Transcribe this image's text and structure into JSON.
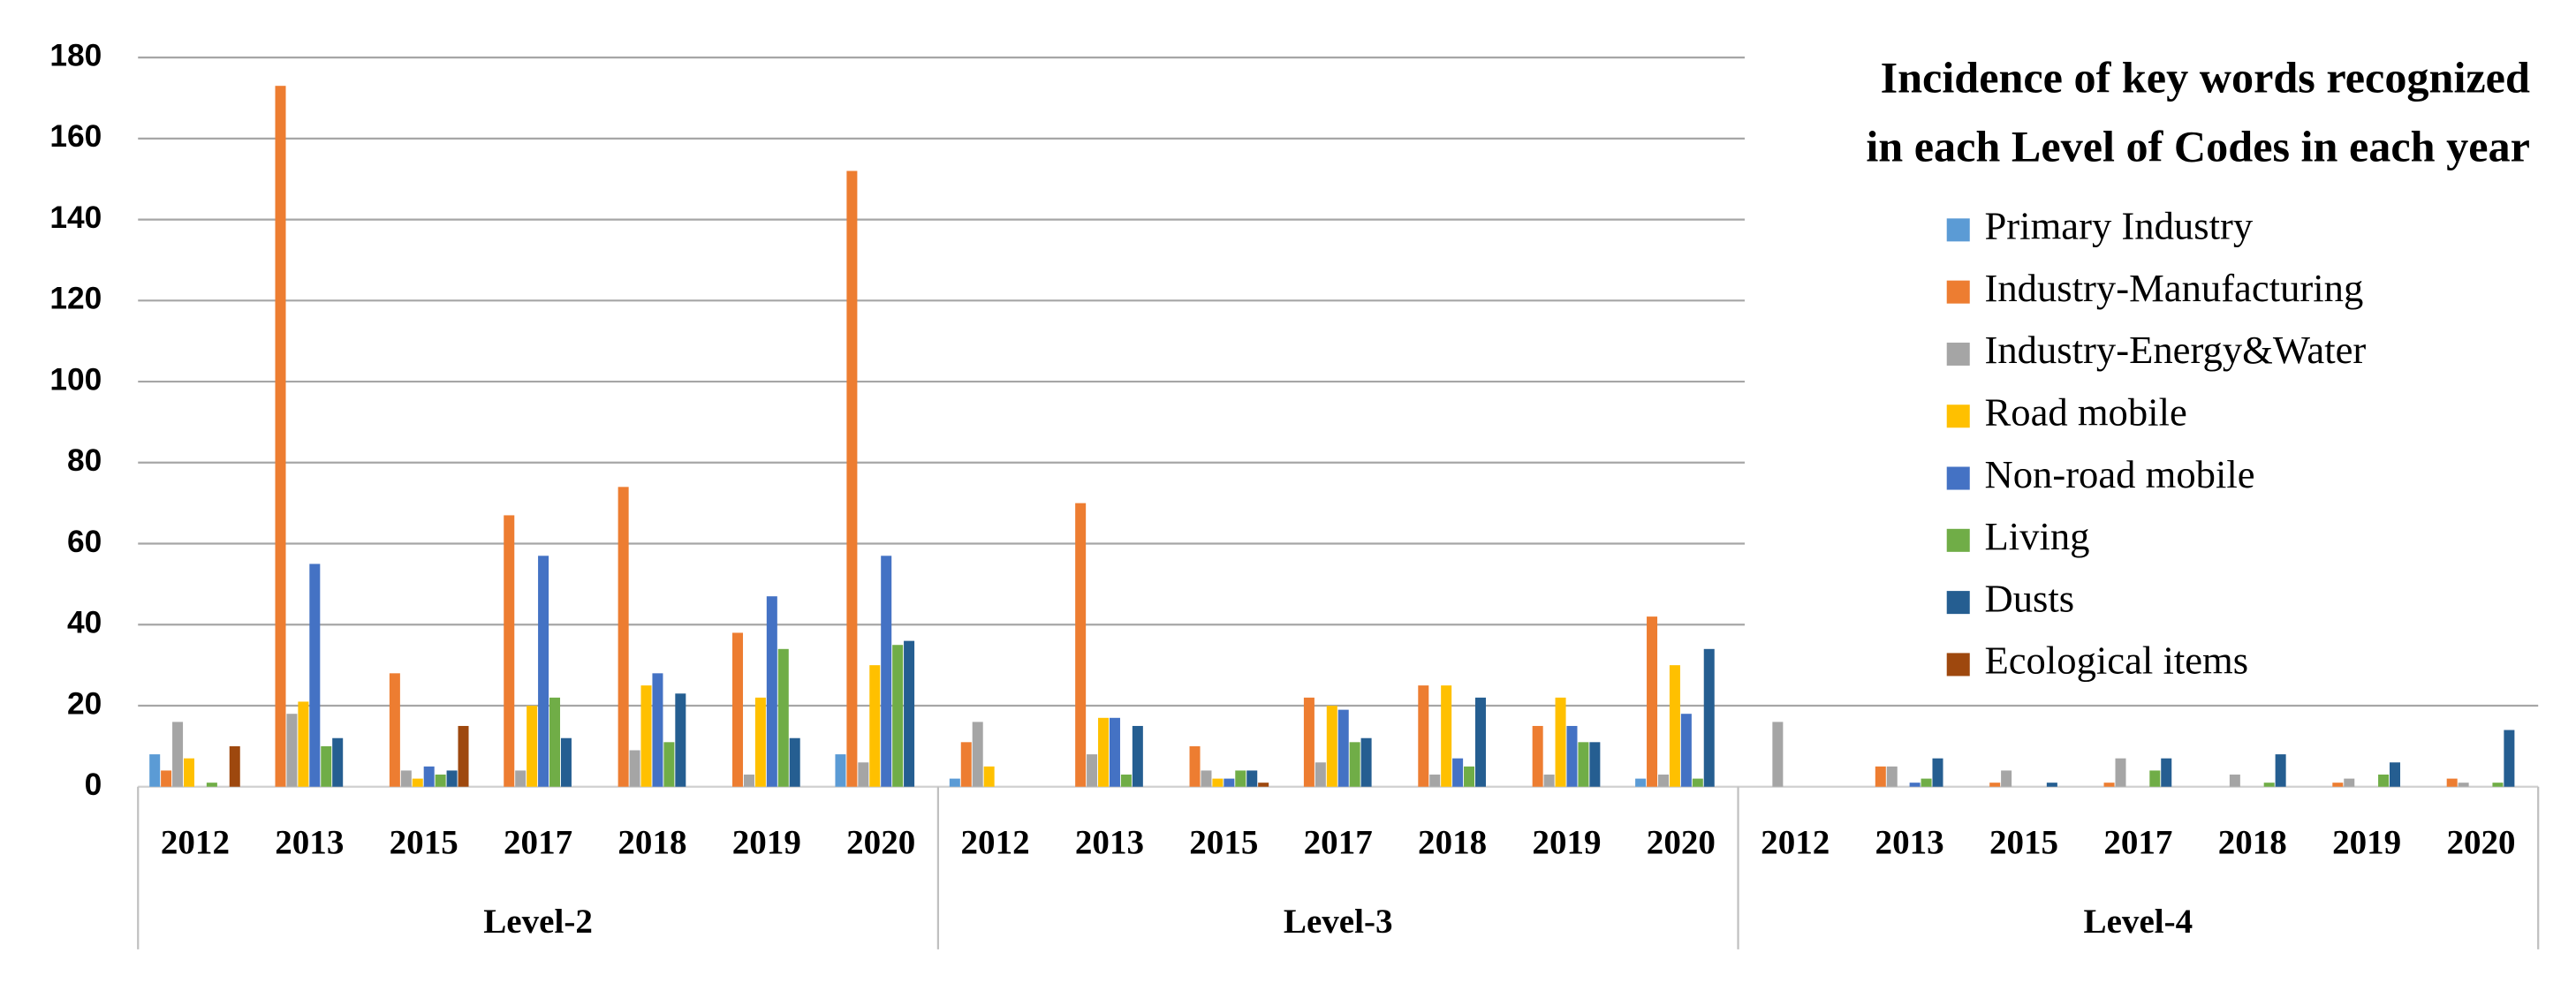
{
  "chart_data": {
    "type": "bar",
    "title": [
      "Incidence of key words recognized",
      "in each Level of Codes in each year"
    ],
    "categories": [
      "2012",
      "2013",
      "2015",
      "2017",
      "2018",
      "2019",
      "2020",
      "2012",
      "2013",
      "2015",
      "2017",
      "2018",
      "2019",
      "2020",
      "2012",
      "2013",
      "2015",
      "2017",
      "2018",
      "2019",
      "2020"
    ],
    "groups": [
      "Level-2",
      "Level-3",
      "Level-4"
    ],
    "ylim": [
      0,
      180
    ],
    "yticks": [
      0,
      20,
      40,
      60,
      80,
      100,
      120,
      140,
      160,
      180
    ],
    "grid": true,
    "series": [
      {
        "name": "Primary Industry",
        "color": "#5b9bd5",
        "values": [
          8,
          0,
          0,
          0,
          0,
          0,
          8,
          2,
          0,
          0,
          0,
          0,
          0,
          2,
          0,
          0,
          0,
          0,
          0,
          0,
          0
        ]
      },
      {
        "name": "Industry-Manufacturing",
        "color": "#ed7d31",
        "values": [
          4,
          173,
          28,
          67,
          74,
          38,
          152,
          11,
          70,
          10,
          22,
          25,
          15,
          42,
          0,
          5,
          1,
          1,
          0,
          1,
          2
        ]
      },
      {
        "name": "Industry-Energy&Water",
        "color": "#a5a5a5",
        "values": [
          16,
          18,
          4,
          4,
          9,
          3,
          6,
          16,
          8,
          4,
          6,
          3,
          3,
          3,
          16,
          5,
          4,
          7,
          3,
          2,
          1
        ]
      },
      {
        "name": "Road mobile",
        "color": "#ffc000",
        "values": [
          7,
          21,
          2,
          20,
          25,
          22,
          30,
          5,
          17,
          2,
          20,
          25,
          22,
          30,
          0,
          0,
          0,
          0,
          0,
          0,
          0
        ]
      },
      {
        "name": "Non-road mobile",
        "color": "#4472c4",
        "values": [
          0,
          55,
          5,
          57,
          28,
          47,
          57,
          0,
          17,
          2,
          19,
          7,
          15,
          18,
          0,
          1,
          0,
          0,
          0,
          0,
          0
        ]
      },
      {
        "name": "Living",
        "color": "#70ad47",
        "values": [
          1,
          10,
          3,
          22,
          11,
          34,
          35,
          0,
          3,
          4,
          11,
          5,
          11,
          2,
          0,
          2,
          0,
          4,
          1,
          3,
          1
        ]
      },
      {
        "name": "Dusts",
        "color": "#255e91",
        "values": [
          0,
          12,
          4,
          12,
          23,
          12,
          36,
          0,
          15,
          4,
          12,
          22,
          11,
          34,
          0,
          7,
          1,
          7,
          8,
          6,
          14
        ]
      },
      {
        "name": "Ecological items",
        "color": "#9e480e",
        "values": [
          10,
          0,
          15,
          0,
          0,
          0,
          0,
          0,
          0,
          1,
          0,
          0,
          0,
          0,
          0,
          0,
          0,
          0,
          0,
          0,
          0
        ]
      }
    ]
  }
}
